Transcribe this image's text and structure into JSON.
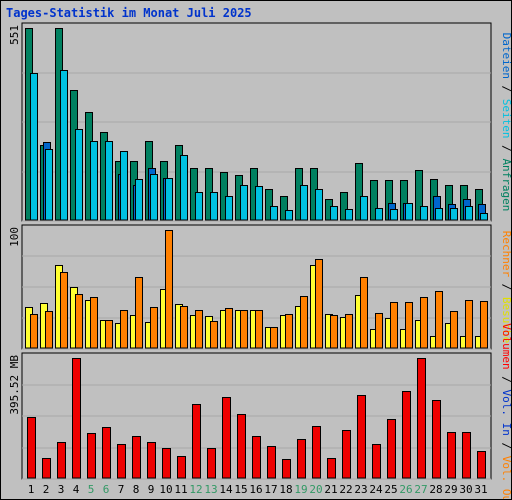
{
  "chart_data": {
    "type": "bar",
    "title": "Tages-Statistik im Monat Juli 2025",
    "days": [
      "1",
      "2",
      "3",
      "4",
      "5",
      "6",
      "7",
      "8",
      "9",
      "10",
      "11",
      "12",
      "13",
      "14",
      "15",
      "16",
      "17",
      "18",
      "19",
      "20",
      "21",
      "22",
      "23",
      "24",
      "25",
      "26",
      "27",
      "28",
      "29",
      "30",
      "31"
    ],
    "weekend_days": [
      "5",
      "6",
      "12",
      "13",
      "19",
      "20",
      "26",
      "27"
    ],
    "weekday_color": "#000000",
    "weekend_color": "#339966",
    "panels": [
      {
        "id": "hits",
        "tick_label": "551",
        "ymax": 551,
        "side_labels": [
          {
            "text": "Dateien",
            "color": "#0066cc"
          },
          {
            "text": "Seiten",
            "color": "#00c0e0"
          },
          {
            "text": "Anfragen",
            "color": "#008060"
          }
        ],
        "separator_color": "#000000",
        "series": [
          {
            "name": "Anfragen",
            "color": "#008060",
            "values": [
              551,
              214,
              551,
              372,
              311,
              253,
              169,
              169,
              228,
              169,
              214,
              149,
              149,
              139,
              128,
              149,
              90,
              70,
              149,
              149,
              60,
              80,
              164,
              115,
              115,
              115,
              143,
              119,
              100,
              100,
              90
            ]
          },
          {
            "name": "Dateien",
            "color": "#0066cc",
            "values": [
              0,
              0,
              0,
              0,
              0,
              0,
              0,
              0,
              0,
              0,
              0,
              0,
              0,
              0,
              0,
              0,
              0,
              0,
              0,
              0,
              0,
              0,
              0,
              0,
              0,
              0,
              0,
              0,
              0,
              0,
              0
            ]
          },
          {
            "name": "Seiten",
            "color": "#00c0e0",
            "values": [
              421,
              204,
              430,
              262,
              228,
              228,
              197,
              119,
              131,
              120,
              186,
              80,
              80,
              69,
              100,
              99,
              41,
              30,
              100,
              90,
              39,
              31,
              69,
              35,
              32,
              49,
              41,
              35,
              34,
              41,
              20
            ]
          }
        ],
        "blue_marks": [
          0,
          224,
          0,
          0,
          0,
          0,
          131,
          100,
          150,
          121,
          0,
          0,
          0,
          0,
          0,
          0,
          0,
          0,
          0,
          0,
          0,
          0,
          0,
          0,
          50,
          50,
          0,
          70,
          45,
          60,
          45
        ]
      },
      {
        "id": "visits",
        "tick_label": "100",
        "ymax": 100,
        "side_labels": [
          {
            "text": "Rechner",
            "color": "#ff8000"
          },
          {
            "text": "Besuche",
            "color": "#e0e000"
          }
        ],
        "series": [
          {
            "name": "Besuche",
            "color": "#ffff33",
            "values": [
              35,
              38,
              70,
              52,
              41,
              24,
              21,
              28,
              22,
              50,
              37,
              28,
              27,
              32,
              32,
              32,
              18,
              28,
              36,
              70,
              29,
              26,
              45,
              16,
              25,
              16,
              24,
              10,
              21,
              10,
              10
            ]
          },
          {
            "name": "Rechner",
            "color": "#ff8000",
            "values": [
              29,
              31,
              64,
              46,
              43,
              24,
              32,
              60,
              35,
              100,
              36,
              32,
              23,
              34,
              32,
              32,
              18,
              29,
              44,
              75,
              28,
              29,
              60,
              30,
              39,
              39,
              43,
              48,
              31,
              41,
              40
            ]
          }
        ]
      },
      {
        "id": "volume",
        "tick_label": "395.52 MB",
        "ymax": 395.52,
        "side_labels": [
          {
            "text": "Volumen",
            "color": "#ff0000"
          },
          {
            "text": "Vol. In",
            "color": "#0033cc"
          },
          {
            "text": "Vol. Out",
            "color": "#ff8000"
          }
        ],
        "series": [
          {
            "name": "Volumen",
            "color": "#ee0000",
            "values": [
              200,
              65,
              118,
              395,
              147,
              168,
              112,
              140,
              118,
              98,
              74,
              245,
              100,
              266,
              212,
              140,
              104,
              64,
              130,
              170,
              67,
              159,
              274,
              112,
              196,
              286,
              395,
              257,
              153,
              151,
              88
            ]
          }
        ]
      }
    ]
  }
}
